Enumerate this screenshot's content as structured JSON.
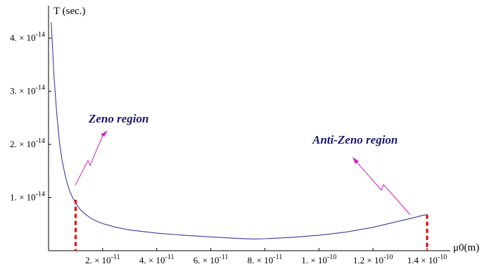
{
  "chart_data": {
    "type": "line",
    "xlabel": "μ0(m)",
    "ylabel": "T (sec.)",
    "xlim": [
      0,
      1.4e-10
    ],
    "ylim": [
      0,
      4.4e-14
    ],
    "x_ticks": [
      {
        "value": 2e-11,
        "mantissa": "2.",
        "exponent": "-11"
      },
      {
        "value": 4e-11,
        "mantissa": "4.",
        "exponent": "-11"
      },
      {
        "value": 6e-11,
        "mantissa": "6.",
        "exponent": "-11"
      },
      {
        "value": 8e-11,
        "mantissa": "8.",
        "exponent": "-11"
      },
      {
        "value": 1e-10,
        "mantissa": "1.",
        "exponent": "-10"
      },
      {
        "value": 1.2e-10,
        "mantissa": "1.2",
        "exponent": "-10"
      },
      {
        "value": 1.4e-10,
        "mantissa": "1.4",
        "exponent": "-10"
      }
    ],
    "y_ticks": [
      {
        "value": 1e-14,
        "mantissa": "1.",
        "exponent": "-14"
      },
      {
        "value": 2e-14,
        "mantissa": "2.",
        "exponent": "-14"
      },
      {
        "value": 3e-14,
        "mantissa": "3.",
        "exponent": "-14"
      },
      {
        "value": 4e-14,
        "mantissa": "4.",
        "exponent": "-14"
      }
    ],
    "series": [
      {
        "color": "#3b3b9a",
        "x": [
          1e-12,
          2e-12,
          3e-12,
          4e-12,
          5e-12,
          6e-12,
          7e-12,
          8e-12,
          9e-12,
          1e-11,
          1.1e-11,
          1.2e-11,
          1.4e-11,
          1.6e-11,
          1.8e-11,
          2e-11,
          2.5e-11,
          3e-11,
          3.5e-11,
          4e-11,
          5e-11,
          6e-11,
          7e-11,
          7.6e-11,
          8e-11,
          9e-11,
          1e-10,
          1.1e-10,
          1.2e-10,
          1.3e-10,
          1.35e-10,
          1.38e-10,
          1.4e-10
        ],
        "y": [
          4.3e-14,
          3.3e-14,
          2.6e-14,
          2.05e-14,
          1.7e-14,
          1.45e-14,
          1.25e-14,
          1.1e-14,
          9.9e-15,
          9e-15,
          8.2e-15,
          7.6e-15,
          6.7e-15,
          6e-15,
          5.5e-15,
          5.1e-15,
          4.4e-15,
          3.9e-15,
          3.6e-15,
          3.3e-15,
          2.9e-15,
          2.6e-15,
          2.3e-15,
          2.2e-15,
          2.25e-15,
          2.5e-15,
          2.9e-15,
          3.5e-15,
          4.4e-15,
          5.6e-15,
          6.2e-15,
          6.6e-15,
          6.8e-15
        ]
      }
    ],
    "markers": [
      {
        "x": 1e-11,
        "y": 9.6e-15,
        "color": "#e00000",
        "style": "dashed"
      },
      {
        "x": 1.4e-10,
        "y": 6.8e-15,
        "color": "#e00000",
        "style": "dashed"
      }
    ],
    "annotations": [
      {
        "text": "Zeno region",
        "color": "#1a1a6b",
        "arrow_color": "#d020c0"
      },
      {
        "text": "Anti-Zeno region",
        "color": "#1a1a6b",
        "arrow_color": "#d020c0"
      }
    ]
  }
}
